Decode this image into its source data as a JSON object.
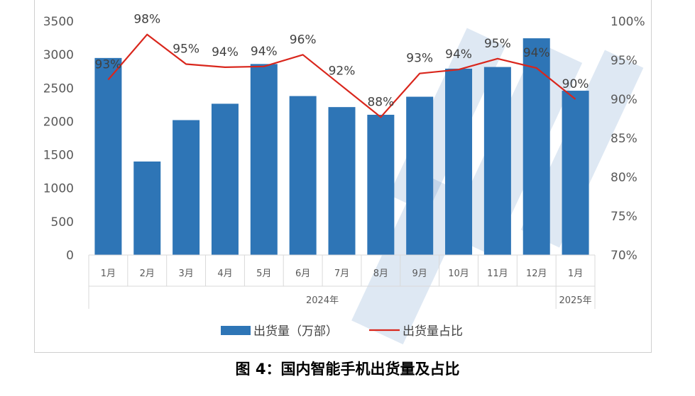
{
  "chart_data": {
    "type": "bar",
    "categories": [
      "1月",
      "2月",
      "3月",
      "4月",
      "5月",
      "6月",
      "7月",
      "8月",
      "9月",
      "10月",
      "11月",
      "12月",
      "1月"
    ],
    "groups": [
      {
        "label": "2024年",
        "span": 12
      },
      {
        "label": "2025年",
        "span": 1
      }
    ],
    "series": [
      {
        "name": "出货量（万部）",
        "type": "bar",
        "axis": "left",
        "color": "#2e75b6",
        "values": [
          2950,
          1400,
          2020,
          2265,
          2860,
          2380,
          2215,
          2100,
          2370,
          2790,
          2815,
          3245,
          2460
        ]
      },
      {
        "name": "出货量占比",
        "type": "line",
        "axis": "right",
        "color": "#d9261c",
        "values": [
          92.5,
          98.3,
          94.5,
          94.1,
          94.2,
          95.7,
          91.7,
          87.7,
          93.3,
          93.8,
          95.2,
          94.0,
          90.0
        ],
        "labels": [
          "93%",
          "98%",
          "95%",
          "94%",
          "94%",
          "96%",
          "92%",
          "88%",
          "93%",
          "94%",
          "95%",
          "94%",
          "90%"
        ]
      }
    ],
    "y_left": {
      "min": 0,
      "max": 3500,
      "ticks": [
        "0",
        "500",
        "1000",
        "1500",
        "2000",
        "2500",
        "3000",
        "3500"
      ]
    },
    "y_right": {
      "min": 70,
      "max": 100,
      "ticks": [
        "70%",
        "75%",
        "80%",
        "85%",
        "90%",
        "95%",
        "100%"
      ]
    },
    "grid": false,
    "legend": "bottom-center"
  },
  "caption": "图 4：国内智能手机出货量及占比"
}
